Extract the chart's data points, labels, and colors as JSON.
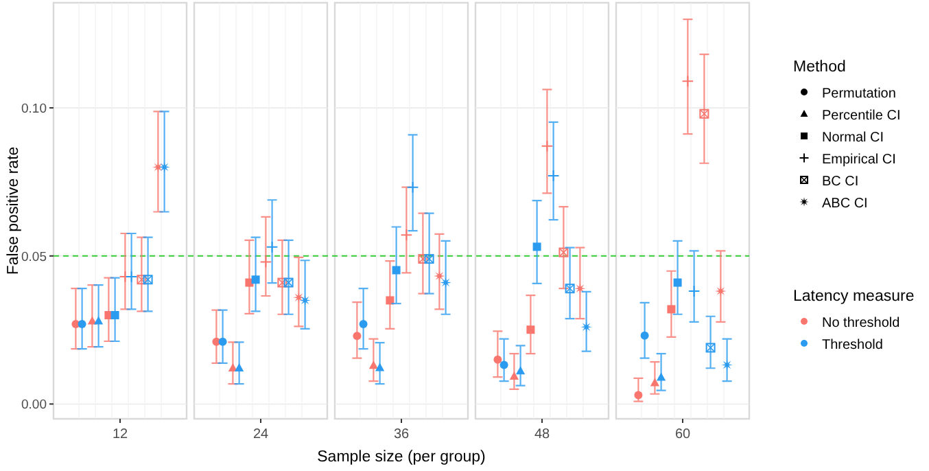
{
  "chart_data": {
    "type": "scatter",
    "xlabel": "Sample size (per group)",
    "ylabel": "False positive rate",
    "categories": [
      "12",
      "24",
      "36",
      "48",
      "60"
    ],
    "ylim": [
      -0.005,
      0.1355
    ],
    "yticks": [
      {
        "value": 0,
        "label": "0.00"
      },
      0.05,
      {
        "value": 0.1,
        "label": "0.10"
      }
    ],
    "grid": true,
    "annotations": [
      "Method",
      "Permutation",
      "Percentile CI",
      "Normal CI",
      "Empirical CI",
      "BC CI",
      "ABC CI",
      "Latency measure",
      "No threshold",
      "Threshold"
    ],
    "ref_lines": [
      {
        "axis": "y",
        "value": 0.05,
        "color": "#33cc33",
        "line_style": "dashed"
      }
    ],
    "series": [
      {
        "color": "#f8766d",
        "marker": "circle",
        "values": [
          0.027,
          0.021,
          0.023,
          0.015,
          0.003
        ],
        "errors": [
          [
            0.0186,
            0.039
          ],
          [
            0.0138,
            0.0317
          ],
          [
            0.0155,
            0.0344
          ],
          [
            0.0091,
            0.0246
          ],
          [
            0.0009,
            0.0087
          ]
        ]
      },
      {
        "color": "#2b9bf0",
        "marker": "circle",
        "values": [
          0.027,
          0.021,
          0.027,
          0.0132,
          0.0231
        ],
        "errors": [
          [
            0.0186,
            0.039
          ],
          [
            0.0138,
            0.0317
          ],
          [
            0.0186,
            0.039
          ],
          [
            0.0077,
            0.022
          ],
          [
            0.0155,
            0.0342
          ]
        ]
      },
      {
        "color": "#f8766d",
        "marker": "triangle",
        "values": [
          0.028,
          0.0121,
          0.013,
          0.0093,
          0.0071
        ],
        "errors": [
          [
            0.0193,
            0.0402
          ],
          [
            0.0068,
            0.0209
          ],
          [
            0.0077,
            0.022
          ],
          [
            0.005,
            0.017
          ],
          [
            0.0034,
            0.0142
          ]
        ]
      },
      {
        "color": "#2b9bf0",
        "marker": "triangle",
        "values": [
          0.028,
          0.0121,
          0.0122,
          0.0111,
          0.009
        ],
        "errors": [
          [
            0.0193,
            0.0402
          ],
          [
            0.0068,
            0.0209
          ],
          [
            0.0068,
            0.0207
          ],
          [
            0.0062,
            0.0197
          ],
          [
            0.0046,
            0.017
          ]
        ]
      },
      {
        "color": "#f8766d",
        "marker": "square",
        "values": [
          0.03,
          0.041,
          0.035,
          0.0251,
          0.032
        ],
        "errors": [
          [
            0.0212,
            0.0426
          ],
          [
            0.0305,
            0.0553
          ],
          [
            0.0254,
            0.0483
          ],
          [
            0.017,
            0.0367
          ],
          [
            0.0226,
            0.0449
          ]
        ]
      },
      {
        "color": "#2b9bf0",
        "marker": "square",
        "values": [
          0.03,
          0.042,
          0.0452,
          0.0531,
          0.041
        ],
        "errors": [
          [
            0.0212,
            0.0426
          ],
          [
            0.0313,
            0.0563
          ],
          [
            0.0339,
            0.0598
          ],
          [
            0.0407,
            0.0687
          ],
          [
            0.0303,
            0.0551
          ]
        ]
      },
      {
        "color": "#f8766d",
        "marker": "cross",
        "values": [
          0.043,
          0.048,
          0.0571,
          0.0871,
          0.109
        ],
        "errors": [
          [
            0.032,
            0.0576
          ],
          [
            0.0365,
            0.0632
          ],
          [
            0.0443,
            0.0732
          ],
          [
            0.0712,
            0.1062
          ],
          [
            0.0912,
            0.1299
          ]
        ]
      },
      {
        "color": "#2b9bf0",
        "marker": "cross",
        "values": [
          0.043,
          0.053,
          0.0732,
          0.0771,
          0.0381
        ],
        "errors": [
          [
            0.032,
            0.0576
          ],
          [
            0.0409,
            0.0689
          ],
          [
            0.0585,
            0.0909
          ],
          [
            0.0622,
            0.0952
          ],
          [
            0.0277,
            0.0517
          ]
        ]
      },
      {
        "color": "#f8766d",
        "marker": "square-x",
        "values": [
          0.042,
          0.041,
          0.049,
          0.0512,
          0.098
        ],
        "errors": [
          [
            0.0313,
            0.0563
          ],
          [
            0.0303,
            0.0553
          ],
          [
            0.0373,
            0.0644
          ],
          [
            0.039,
            0.0666
          ],
          [
            0.0813,
            0.1181
          ]
        ]
      },
      {
        "color": "#2b9bf0",
        "marker": "square-x",
        "values": [
          0.042,
          0.041,
          0.049,
          0.039,
          0.019
        ],
        "errors": [
          [
            0.0313,
            0.0563
          ],
          [
            0.0303,
            0.0553
          ],
          [
            0.0373,
            0.0644
          ],
          [
            0.0288,
            0.0528
          ],
          [
            0.0121,
            0.0296
          ]
        ]
      },
      {
        "color": "#f8766d",
        "marker": "star",
        "values": [
          0.08,
          0.036,
          0.0432,
          0.039,
          0.0381
        ],
        "errors": [
          [
            0.0649,
            0.0988
          ],
          [
            0.0262,
            0.0495
          ],
          [
            0.032,
            0.0574
          ],
          [
            0.0288,
            0.0528
          ],
          [
            0.0277,
            0.0517
          ]
        ]
      },
      {
        "color": "#2b9bf0",
        "marker": "star",
        "values": [
          0.08,
          0.035,
          0.041,
          0.026,
          0.0132
        ],
        "errors": [
          [
            0.0649,
            0.0988
          ],
          [
            0.0254,
            0.0485
          ],
          [
            0.0303,
            0.0551
          ],
          [
            0.0178,
            0.0379
          ],
          [
            0.0077,
            0.022
          ]
        ]
      }
    ]
  }
}
